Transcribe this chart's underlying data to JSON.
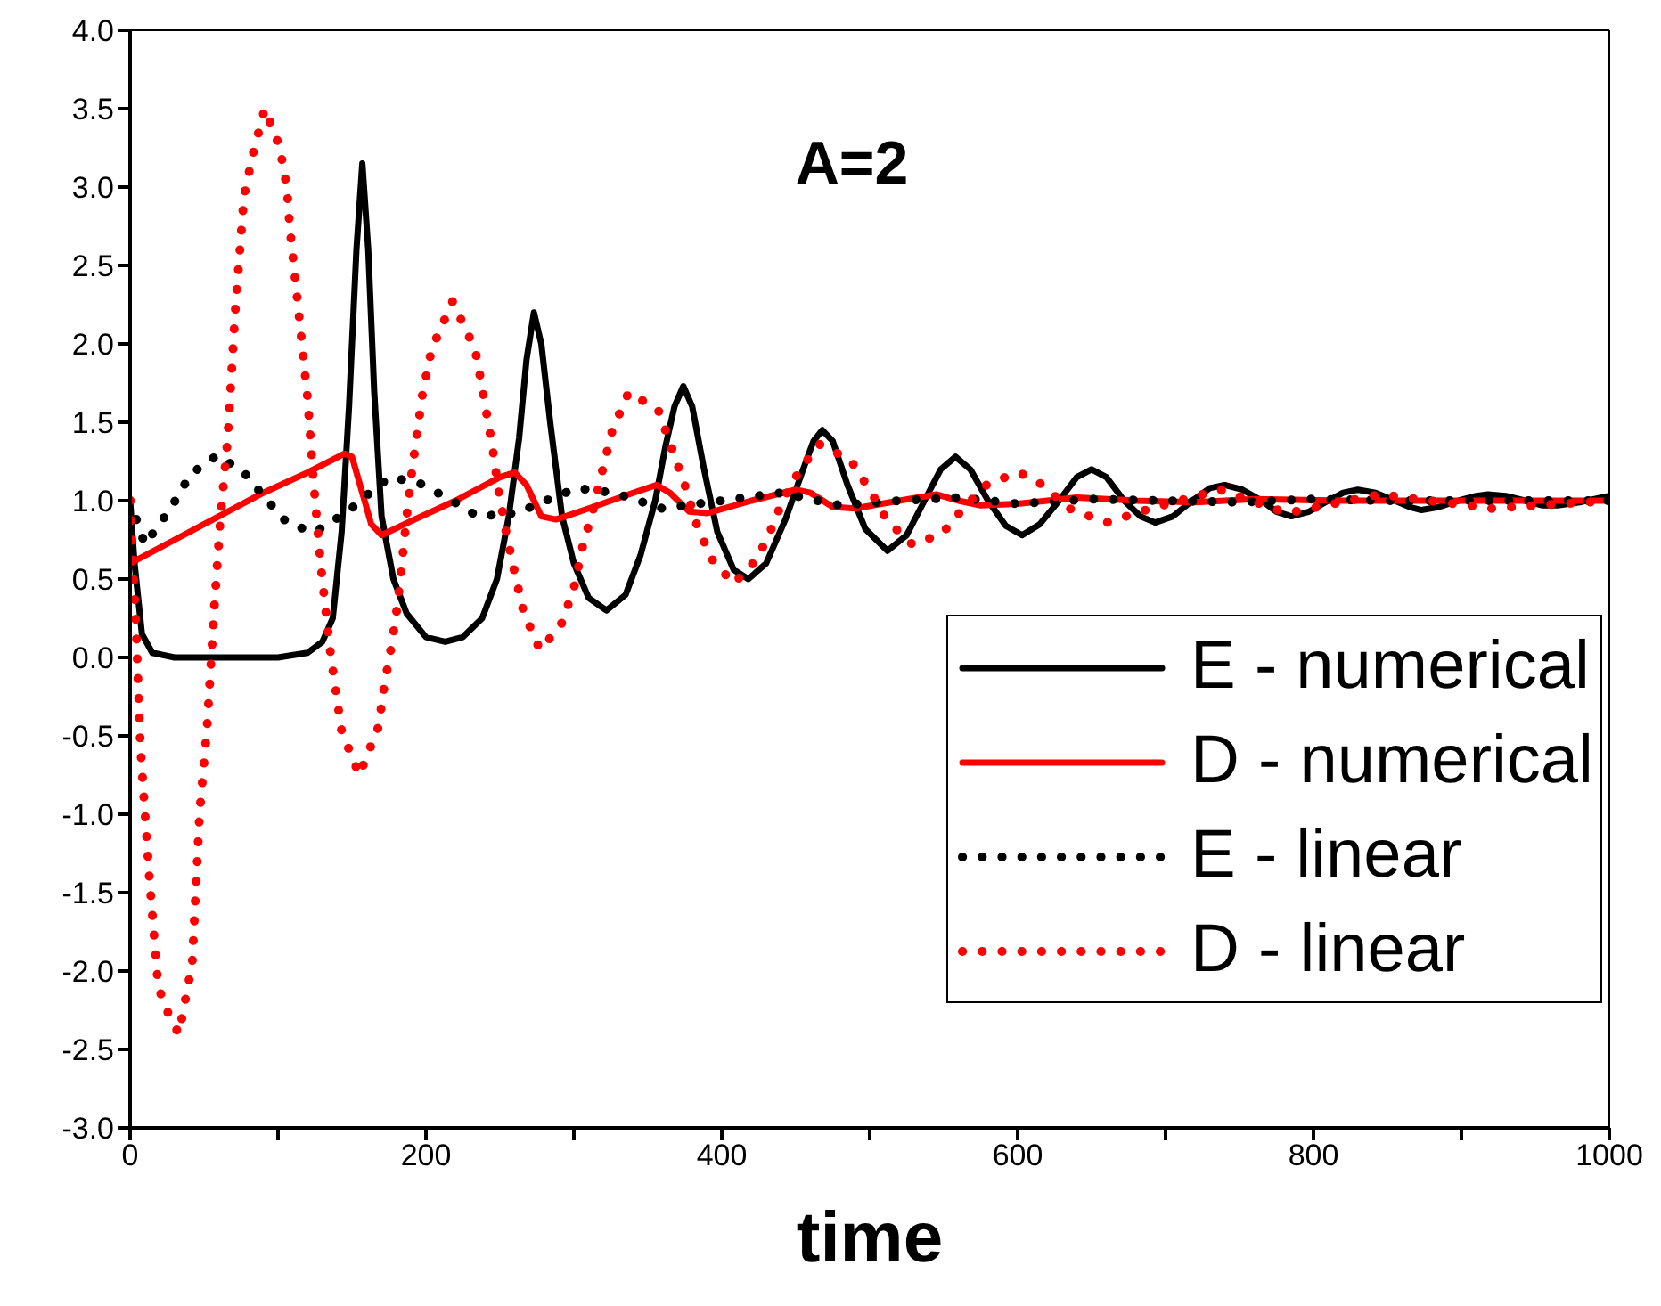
{
  "chart_data": {
    "type": "line",
    "title": "A=2",
    "xlabel": "time",
    "xlim": [
      0,
      1000
    ],
    "xticks": [
      0,
      {
        "value": 100,
        "label": null
      },
      200,
      {
        "value": 300,
        "label": null
      },
      400,
      {
        "value": 500,
        "label": null
      },
      600,
      {
        "value": 700,
        "label": null
      },
      800,
      {
        "value": 900,
        "label": null
      },
      1000
    ],
    "ylim": [
      -3,
      4
    ],
    "yticks": [
      {
        "value": -3,
        "label": "-3.0"
      },
      {
        "value": -2.5,
        "label": "-2.5"
      },
      {
        "value": -2,
        "label": "-2.0"
      },
      {
        "value": -1.5,
        "label": "-1.5"
      },
      {
        "value": -1,
        "label": "-1.0"
      },
      {
        "value": -0.5,
        "label": "-0.5"
      },
      {
        "value": 0,
        "label": "0.0"
      },
      {
        "value": 0.5,
        "label": "0.5"
      },
      {
        "value": 1,
        "label": "1.0"
      },
      {
        "value": 1.5,
        "label": "1.5"
      },
      {
        "value": 2,
        "label": "2.0"
      },
      {
        "value": 2.5,
        "label": "2.5"
      },
      {
        "value": 3,
        "label": "3.0"
      },
      {
        "value": 3.5,
        "label": "3.5"
      },
      {
        "value": 4,
        "label": "4.0"
      }
    ],
    "legend": "bottom right",
    "marker": "none",
    "series": [
      {
        "name": "E - numerical",
        "color": "#000000",
        "line_style": "solid",
        "x": [
          0,
          3,
          8,
          15,
          30,
          60,
          100,
          120,
          130,
          137,
          143,
          148,
          153,
          157,
          161,
          165,
          170,
          178,
          187,
          200,
          213,
          225,
          238,
          248,
          256,
          263,
          268,
          273,
          278,
          284,
          292,
          300,
          310,
          322,
          335,
          345,
          355,
          362,
          368,
          374,
          380,
          388,
          397,
          408,
          418,
          430,
          443,
          455,
          462,
          468,
          475,
          485,
          497,
          512,
          525,
          537,
          548,
          558,
          568,
          580,
          592,
          603,
          615,
          628,
          640,
          650,
          660,
          672,
          683,
          693,
          705,
          718,
          730,
          740,
          752,
          765,
          775,
          785,
          797,
          810,
          820,
          830,
          842,
          855,
          865,
          873,
          885,
          898,
          910,
          918,
          930,
          943,
          955,
          965,
          980,
          1000
        ],
        "values": [
          1.0,
          0.6,
          0.15,
          0.03,
          0.0,
          0.0,
          0.0,
          0.03,
          0.1,
          0.25,
          0.8,
          1.6,
          2.6,
          3.15,
          2.6,
          1.7,
          0.9,
          0.5,
          0.28,
          0.13,
          0.1,
          0.13,
          0.25,
          0.5,
          0.9,
          1.4,
          1.9,
          2.2,
          2.0,
          1.5,
          0.9,
          0.6,
          0.38,
          0.3,
          0.4,
          0.65,
          1.0,
          1.35,
          1.6,
          1.73,
          1.6,
          1.2,
          0.8,
          0.56,
          0.5,
          0.6,
          0.88,
          1.2,
          1.38,
          1.45,
          1.38,
          1.1,
          0.82,
          0.68,
          0.78,
          1.0,
          1.2,
          1.28,
          1.2,
          1.0,
          0.84,
          0.78,
          0.85,
          1.0,
          1.15,
          1.2,
          1.15,
          1.0,
          0.9,
          0.86,
          0.9,
          1.0,
          1.08,
          1.1,
          1.07,
          1.0,
          0.93,
          0.9,
          0.93,
          1.0,
          1.05,
          1.07,
          1.05,
          1.0,
          0.96,
          0.94,
          0.96,
          1.0,
          1.03,
          1.04,
          1.03,
          1.0,
          0.97,
          0.97,
          0.99,
          1.03
        ]
      },
      {
        "name": "D - numerical",
        "color": "#ff0000",
        "line_style": "solid",
        "x": [
          0,
          30,
          60,
          90,
          120,
          145,
          150,
          157,
          163,
          170,
          190,
          220,
          250,
          260,
          268,
          278,
          288,
          310,
          340,
          356,
          365,
          378,
          390,
          420,
          450,
          460,
          475,
          490,
          520,
          545,
          560,
          575,
          600,
          640,
          680,
          720,
          760,
          820,
          880,
          1000
        ],
        "values": [
          0.6,
          0.75,
          0.9,
          1.05,
          1.18,
          1.3,
          1.28,
          1.05,
          0.85,
          0.78,
          0.87,
          1.0,
          1.15,
          1.18,
          1.1,
          0.9,
          0.88,
          0.95,
          1.05,
          1.1,
          1.05,
          0.93,
          0.92,
          1.0,
          1.07,
          1.05,
          0.96,
          0.95,
          1.0,
          1.04,
          1.0,
          0.97,
          0.98,
          1.02,
          1.0,
          0.99,
          1.01,
          1.0,
          1.0,
          1.0
        ]
      },
      {
        "name": "E - linear",
        "color": "#000000",
        "line_style": "dotted",
        "x": [
          0,
          10,
          28,
          41,
          59,
          77,
          91,
          107,
          125,
          147,
          167,
          176,
          196,
          216,
          235,
          261,
          281,
          302,
          327,
          360,
          400,
          440,
          480,
          520,
          560,
          600,
          650,
          700,
          750,
          800,
          850,
          900,
          950,
          1000
        ],
        "values": [
          1.0,
          0.72,
          0.96,
          1.17,
          1.29,
          1.18,
          1.02,
          0.85,
          0.8,
          0.93,
          1.09,
          1.15,
          1.11,
          1.01,
          0.9,
          0.92,
          1.0,
          1.08,
          1.05,
          0.95,
          1.0,
          1.05,
          0.97,
          1.0,
          1.02,
          0.98,
          1.01,
          1.0,
          0.99,
          1.01,
          1.0,
          1.0,
          1.0,
          1.0
        ]
      },
      {
        "name": "D - linear",
        "color": "#ff0000",
        "line_style": "dotted",
        "x": [
          0,
          4,
          7,
          13,
          19,
          27,
          33,
          42,
          47,
          52,
          57,
          61,
          66,
          71,
          77,
          83,
          91,
          101,
          106,
          108,
          114,
          120,
          124,
          129,
          135,
          139,
          143,
          155,
          168,
          172,
          177,
          181,
          184,
          187,
          190,
          194,
          198,
          204,
          218,
          233,
          235,
          240,
          245,
          249,
          254,
          260,
          266,
          277,
          291,
          300,
          306,
          313,
          319,
          326,
          337,
          357,
          366,
          375,
          383,
          393,
          408,
          424,
          435,
          441,
          453,
          466,
          487,
          500,
          512,
          529,
          549,
          564,
          580,
          601,
          614,
          635,
          660,
          690,
          737,
          782,
          845,
          920,
          1000
        ],
        "values": [
          1.0,
          0.2,
          -0.57,
          -1.4,
          -2.1,
          -2.3,
          -2.4,
          -1.95,
          -0.99,
          -0.45,
          0.33,
          0.88,
          1.4,
          2.2,
          2.94,
          3.21,
          3.5,
          3.26,
          3.0,
          2.74,
          2.2,
          1.65,
          1.12,
          0.58,
          0.06,
          -0.21,
          -0.47,
          -0.75,
          -0.44,
          -0.17,
          0.09,
          0.35,
          0.62,
          0.9,
          1.15,
          1.43,
          1.7,
          1.97,
          2.27,
          1.97,
          1.88,
          1.61,
          1.34,
          1.07,
          0.81,
          0.54,
          0.29,
          0.05,
          0.2,
          0.44,
          0.71,
          0.94,
          1.18,
          1.45,
          1.69,
          1.58,
          1.34,
          1.1,
          0.85,
          0.63,
          0.47,
          0.63,
          0.85,
          1.0,
          1.2,
          1.36,
          1.26,
          1.07,
          0.87,
          0.72,
          0.79,
          0.96,
          1.11,
          1.18,
          1.12,
          0.95,
          0.86,
          0.95,
          1.07,
          0.92,
          1.04,
          0.95,
          1.0
        ]
      }
    ]
  }
}
